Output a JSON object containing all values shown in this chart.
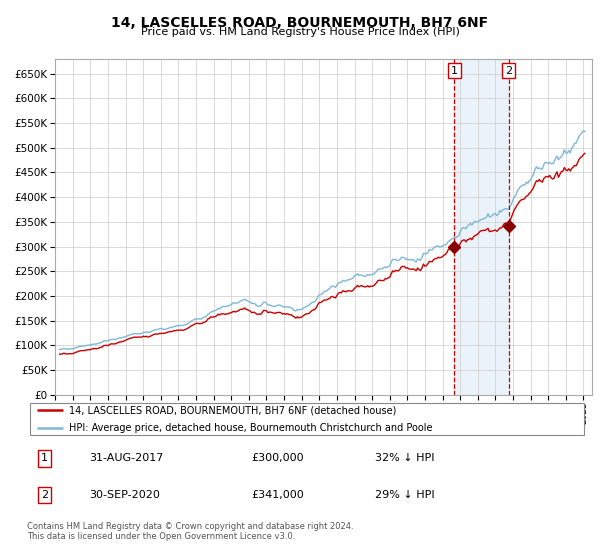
{
  "title": "14, LASCELLES ROAD, BOURNEMOUTH, BH7 6NF",
  "subtitle": "Price paid vs. HM Land Registry's House Price Index (HPI)",
  "hpi_color": "#7fb8d8",
  "price_color": "#cc0000",
  "marker_color": "#8b0000",
  "vline_color": "#cc0000",
  "shade_color": "#daeaf5",
  "ylim_min": 0,
  "ylim_max": 680000,
  "ytick_step": 50000,
  "legend_entry1": "14, LASCELLES ROAD, BOURNEMOUTH, BH7 6NF (detached house)",
  "legend_entry2": "HPI: Average price, detached house, Bournemouth Christchurch and Poole",
  "annotation1_label": "1",
  "annotation1_date": "31-AUG-2017",
  "annotation1_price": "£300,000",
  "annotation1_hpi": "32% ↓ HPI",
  "annotation2_label": "2",
  "annotation2_date": "30-SEP-2020",
  "annotation2_price": "£341,000",
  "annotation2_hpi": "29% ↓ HPI",
  "footer": "Contains HM Land Registry data © Crown copyright and database right 2024.\nThis data is licensed under the Open Government Licence v3.0.",
  "sale1_year": 2017.667,
  "sale2_year": 2020.75,
  "sale1_price": 300000,
  "sale2_price": 341000,
  "xmin": 1995,
  "xmax": 2025.5
}
